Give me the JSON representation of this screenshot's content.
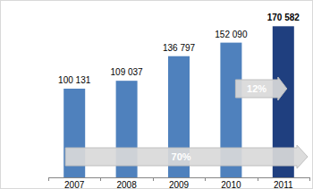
{
  "chart_data": {
    "type": "bar",
    "categories": [
      "2007",
      "2008",
      "2009",
      "2010",
      "2011"
    ],
    "values": [
      100131,
      109037,
      136797,
      152090,
      170582
    ],
    "value_labels": [
      "100 131",
      "109 037",
      "136 797",
      "152 090",
      "170 582"
    ],
    "colors": [
      "#4f81bd",
      "#4f81bd",
      "#4f81bd",
      "#4f81bd",
      "#1f3f7f"
    ],
    "ylim": [
      0,
      180000
    ],
    "data_labels": true,
    "tick_labels": "x",
    "annotations": [
      {
        "text": "12%"
      },
      {
        "text": "70%"
      }
    ]
  }
}
